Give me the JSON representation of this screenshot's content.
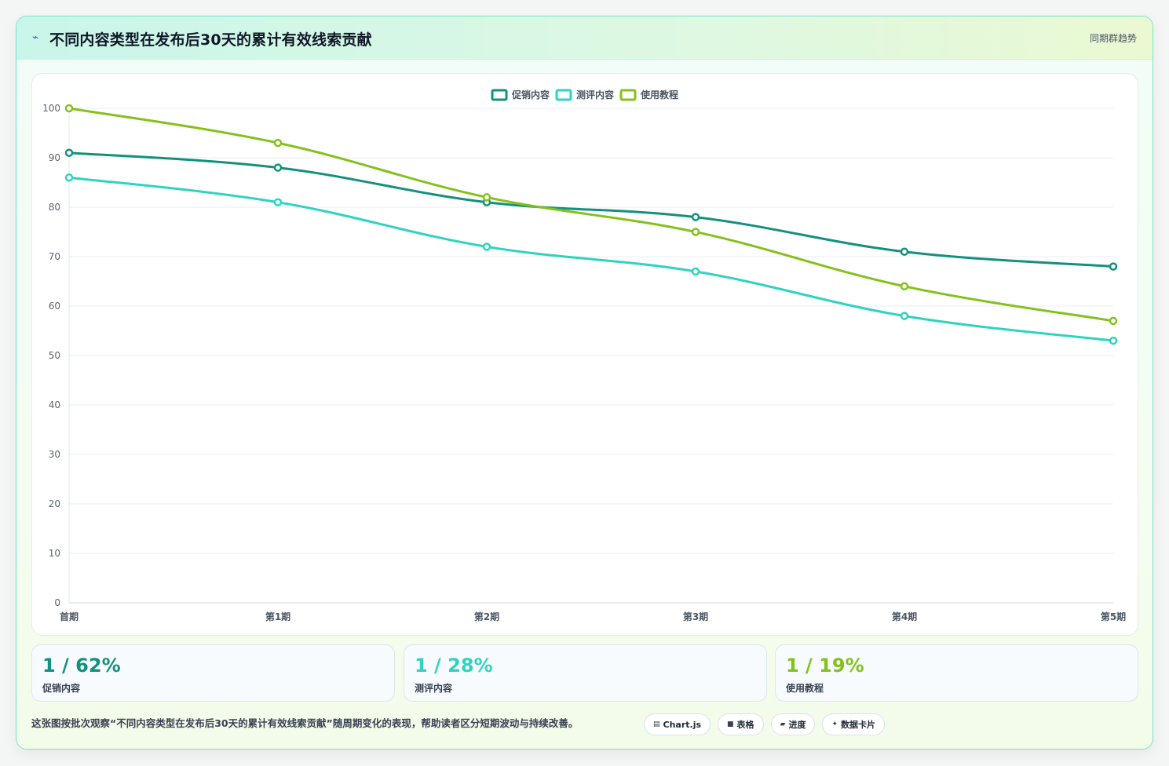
{
  "header": {
    "icon": "sparkline-icon",
    "title": "不同内容类型在发布后30天的累计有效线索贡献",
    "link": "同期群趋势"
  },
  "colors": {
    "promo": "#14907e",
    "review": "#2fd3c0",
    "tutorial": "#84c11d"
  },
  "chart_data": {
    "type": "line",
    "categories": [
      "首期",
      "第1期",
      "第2期",
      "第3期",
      "第4期",
      "第5期"
    ],
    "series": [
      {
        "name": "促销内容",
        "values": [
          91,
          88,
          81,
          78,
          71,
          68
        ],
        "color": "#14907e"
      },
      {
        "name": "测评内容",
        "values": [
          86,
          81,
          72,
          67,
          58,
          53
        ],
        "color": "#2fd3c0"
      },
      {
        "name": "使用教程",
        "values": [
          100,
          93,
          82,
          75,
          64,
          57
        ],
        "color": "#84c11d"
      }
    ],
    "ylim": [
      0,
      100
    ],
    "yticks": [
      0,
      10,
      20,
      30,
      40,
      50,
      60,
      70,
      80,
      90,
      100
    ],
    "grid": true,
    "legend_position": "top-center"
  },
  "stats": [
    {
      "value": "1 / 62%",
      "label": "促销内容",
      "color": "#14907e"
    },
    {
      "value": "1 / 28%",
      "label": "测评内容",
      "color": "#2fd3c0"
    },
    {
      "value": "1 / 19%",
      "label": "使用教程",
      "color": "#84c11d"
    }
  ],
  "footnote": "这张图按批次观察“不同内容类型在发布后30天的累计有效线索贡献”随周期变化的表现，帮助读者区分短期波动与持续改善。",
  "tags": [
    {
      "icon": "chart-icon",
      "glyph": "▤",
      "label": "Chart.js"
    },
    {
      "icon": "table-icon",
      "glyph": "■",
      "label": "表格"
    },
    {
      "icon": "progress-icon",
      "glyph": "▰",
      "label": "进度"
    },
    {
      "icon": "card-icon",
      "glyph": "✦",
      "label": "数据卡片"
    }
  ]
}
